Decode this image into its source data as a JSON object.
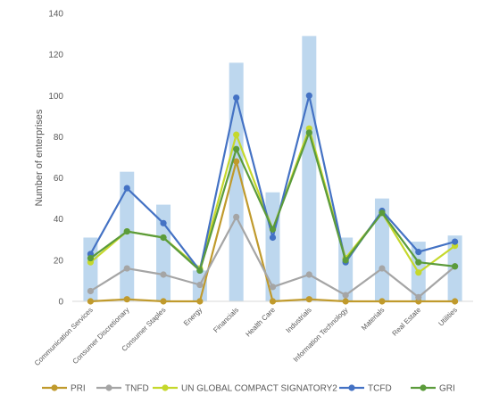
{
  "chart_data": {
    "type": "bar",
    "title": "",
    "xlabel": "",
    "ylabel": "Number of enterprises",
    "ylim": [
      0,
      140
    ],
    "yticks": [
      0,
      20,
      40,
      60,
      80,
      100,
      120,
      140
    ],
    "grid": false,
    "legend_position": "bottom",
    "categories": [
      "Communication Services",
      "Consumer Discretionary",
      "Consumer Staples",
      "Energy",
      "Financials",
      "Health Care",
      "Industrials",
      "Information Technology",
      "Materials",
      "Real Estate",
      "Utilities"
    ],
    "bars": {
      "values": [
        31,
        63,
        47,
        15,
        116,
        53,
        129,
        31,
        50,
        29,
        32
      ],
      "color": "#bdd7ee"
    },
    "series": [
      {
        "name": "PRI",
        "type": "line",
        "color": "#c09a2c",
        "values": [
          0,
          1,
          0,
          0,
          68,
          0,
          1,
          0,
          0,
          0,
          0
        ]
      },
      {
        "name": "TNFD",
        "type": "line",
        "color": "#a5a5a5",
        "values": [
          5,
          16,
          13,
          8,
          41,
          7,
          13,
          3,
          16,
          2,
          17
        ]
      },
      {
        "name": "UN GLOBAL COMPACT SIGNATORY2",
        "type": "line",
        "color": "#c5d82c",
        "values": [
          19,
          34,
          31,
          16,
          81,
          35,
          84,
          21,
          43,
          14,
          27
        ]
      },
      {
        "name": "TCFD",
        "type": "line",
        "color": "#4472c4",
        "values": [
          23,
          55,
          38,
          15,
          99,
          31,
          100,
          19,
          44,
          24,
          29
        ]
      },
      {
        "name": "GRI",
        "type": "line",
        "color": "#5b9b3b",
        "values": [
          21,
          34,
          31,
          15,
          74,
          35,
          82,
          20,
          43,
          19,
          17
        ]
      }
    ]
  }
}
